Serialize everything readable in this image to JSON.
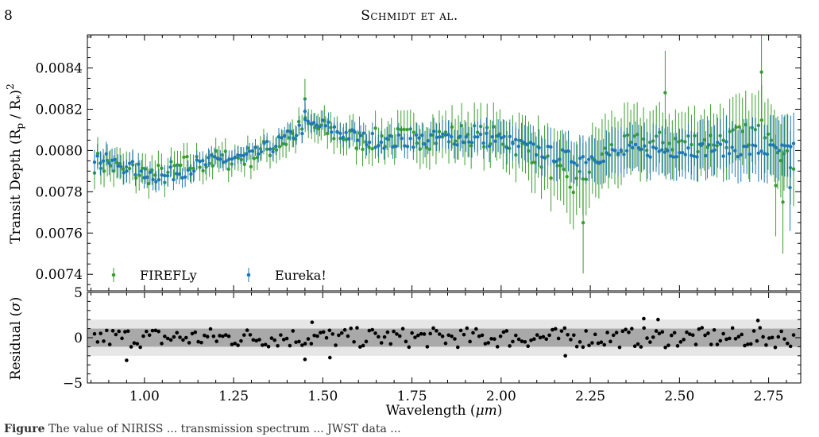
{
  "page": {
    "number": "8",
    "running_head": "Schmidt et al.",
    "caption_label": "Figure",
    "caption_text": "The value of NIRISS ... transmission spectrum ... JWST data ..."
  },
  "colors": {
    "firefly": "#3a9e2f",
    "eureka": "#1f77b4",
    "residual_points": "#000000",
    "band_1sigma": "#a9a9a9",
    "band_2sigma": "#e6e6e6"
  },
  "chart_data": [
    {
      "type": "scatter",
      "panel": "top",
      "xlabel": "",
      "ylabel_base": "Transit Depth (R",
      "ylabel_sub1": "p",
      "ylabel_mid": " / R",
      "ylabel_sub2": "*",
      "ylabel_end": ")",
      "ylabel_sup": "2",
      "xlim": [
        0.84,
        2.84
      ],
      "ylim": [
        0.00732,
        0.00856
      ],
      "yticks": [
        0.0074,
        0.0076,
        0.0078,
        0.008,
        0.0082,
        0.0084
      ],
      "ytick_labels": [
        "0.0074",
        "0.0076",
        "0.0078",
        "0.0080",
        "0.0082",
        "0.0084"
      ],
      "xticks": [
        1.0,
        1.25,
        1.5,
        1.75,
        2.0,
        2.25,
        2.5,
        2.75
      ],
      "grid": false,
      "legend_placement": "lower-left",
      "legend": [
        "FIREFLy",
        "Eureka!"
      ],
      "note": "Series points are read as piecewise-linear anchors (x in microns, depth) plus an alternating scatter offset; error bars given as half-widths interpolated over x.",
      "series": [
        {
          "name": "FIREFLy",
          "n_points": 220,
          "anchors": [
            [
              0.85,
              0.00795
            ],
            [
              0.95,
              0.0079
            ],
            [
              1.05,
              0.00788
            ],
            [
              1.1,
              0.00792
            ],
            [
              1.2,
              0.00795
            ],
            [
              1.3,
              0.00797
            ],
            [
              1.4,
              0.00805
            ],
            [
              1.45,
              0.00812
            ],
            [
              1.5,
              0.0081
            ],
            [
              1.6,
              0.00805
            ],
            [
              1.7,
              0.00806
            ],
            [
              1.8,
              0.00806
            ],
            [
              1.9,
              0.00808
            ],
            [
              2.0,
              0.00806
            ],
            [
              2.1,
              0.00798
            ],
            [
              2.2,
              0.00782
            ],
            [
              2.3,
              0.008
            ],
            [
              2.4,
              0.00804
            ],
            [
              2.5,
              0.00804
            ],
            [
              2.6,
              0.00805
            ],
            [
              2.7,
              0.00808
            ],
            [
              2.75,
              0.00812
            ],
            [
              2.8,
              0.00795
            ]
          ],
          "scatter_amp": 6e-05,
          "err": [
            [
              0.85,
              8e-05
            ],
            [
              1.3,
              6e-05
            ],
            [
              1.6,
              8e-05
            ],
            [
              2.0,
              0.00012
            ],
            [
              2.2,
              0.00018
            ],
            [
              2.5,
              0.00014
            ],
            [
              2.8,
              0.00018
            ]
          ],
          "outliers": [
            [
              1.45,
              0.00825
            ],
            [
              2.23,
              0.00765
            ],
            [
              2.73,
              0.00838
            ],
            [
              2.79,
              0.00775
            ],
            [
              2.77,
              0.00783
            ],
            [
              2.46,
              0.00828
            ]
          ]
        },
        {
          "name": "Eureka!",
          "n_points": 240,
          "anchors": [
            [
              0.85,
              0.00797
            ],
            [
              0.95,
              0.00792
            ],
            [
              1.05,
              0.00787
            ],
            [
              1.1,
              0.0079
            ],
            [
              1.2,
              0.00795
            ],
            [
              1.3,
              0.00797
            ],
            [
              1.4,
              0.00806
            ],
            [
              1.45,
              0.00812
            ],
            [
              1.5,
              0.00812
            ],
            [
              1.6,
              0.00806
            ],
            [
              1.7,
              0.00804
            ],
            [
              1.8,
              0.00806
            ],
            [
              1.9,
              0.00806
            ],
            [
              2.0,
              0.00805
            ],
            [
              2.1,
              0.008
            ],
            [
              2.2,
              0.00796
            ],
            [
              2.3,
              0.00798
            ],
            [
              2.4,
              0.008
            ],
            [
              2.5,
              0.008
            ],
            [
              2.6,
              0.00801
            ],
            [
              2.7,
              0.008
            ],
            [
              2.8,
              0.008
            ]
          ],
          "scatter_amp": 4e-05,
          "err": [
            [
              0.85,
              6e-05
            ],
            [
              1.3,
              4e-05
            ],
            [
              1.6,
              5e-05
            ],
            [
              2.0,
              8e-05
            ],
            [
              2.3,
              0.00011
            ],
            [
              2.6,
              0.00012
            ],
            [
              2.8,
              0.00015
            ]
          ],
          "outliers": [
            [
              1.45,
              0.00819
            ],
            [
              2.81,
              0.00782
            ]
          ]
        }
      ]
    },
    {
      "type": "scatter",
      "panel": "bottom",
      "xlabel": "Wavelength (μm)",
      "xlabel_base": "Wavelength (",
      "xlabel_mu": "μm",
      "xlabel_end": ")",
      "ylabel": "Residual (σ)",
      "ylabel_base": "Residual (",
      "ylabel_sigma": "σ",
      "ylabel_end": ")",
      "xlim": [
        0.84,
        2.84
      ],
      "ylim": [
        -5,
        5
      ],
      "yticks": [
        -5,
        0,
        5
      ],
      "ytick_labels": [
        "−5",
        "0",
        "5"
      ],
      "xticks": [
        1.0,
        1.25,
        1.5,
        1.75,
        2.0,
        2.25,
        2.5,
        2.75
      ],
      "xtick_labels": [
        "1.00",
        "1.25",
        "1.50",
        "1.75",
        "2.00",
        "2.25",
        "2.50",
        "2.75"
      ],
      "bands": {
        "one_sigma": [
          -1,
          1
        ],
        "two_sigma": [
          -2,
          2
        ]
      },
      "grid": false,
      "n_points": 230,
      "scatter_amp": 1.0,
      "outliers": [
        [
          0.95,
          -2.5
        ],
        [
          1.45,
          -2.4
        ],
        [
          1.52,
          -2.2
        ],
        [
          2.18,
          -2.0
        ],
        [
          2.4,
          2.1
        ],
        [
          2.44,
          2.0
        ],
        [
          2.72,
          1.9
        ],
        [
          1.47,
          1.7
        ]
      ]
    }
  ]
}
